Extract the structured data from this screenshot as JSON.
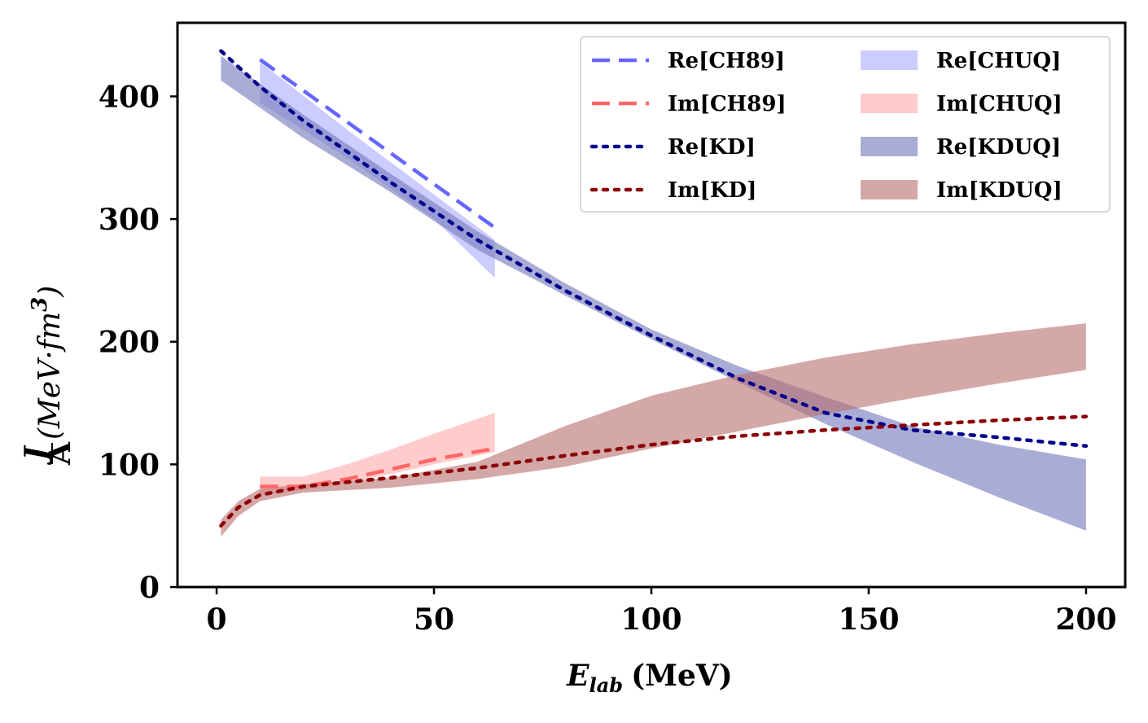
{
  "chart_data": {
    "type": "line",
    "title": "",
    "xlabel": {
      "symbol": "E",
      "subscript": "lab",
      "unit": "(MeV)"
    },
    "ylabel": {
      "fraction_num": "J",
      "fraction_den": "A",
      "text": "(MeV·fm",
      "superscript": "3",
      "close": ")"
    },
    "xlim": [
      -9,
      209
    ],
    "ylim": [
      0,
      460
    ],
    "xticks": [
      0,
      50,
      100,
      150,
      200
    ],
    "yticks": [
      0,
      100,
      200,
      300,
      400
    ],
    "legend_position": "top-right",
    "lines": [
      {
        "name": "Re[CH89]",
        "color": "#6666ff",
        "style": "dashed",
        "x": [
          10,
          64
        ],
        "y": [
          430,
          293
        ]
      },
      {
        "name": "Im[CH89]",
        "color": "#ff6666",
        "style": "dashed",
        "x": [
          10,
          20,
          30,
          40,
          50,
          64
        ],
        "y": [
          82,
          82,
          88,
          96,
          104,
          113
        ]
      },
      {
        "name": "Re[KD]",
        "color": "#00008b",
        "style": "dotted",
        "x": [
          1,
          10,
          20,
          40,
          60,
          80,
          100,
          120,
          140,
          160,
          180,
          200
        ],
        "y": [
          437,
          408,
          380,
          330,
          283,
          242,
          205,
          170,
          142,
          128,
          122,
          115
        ]
      },
      {
        "name": "Im[KD]",
        "color": "#8b0000",
        "style": "dotted",
        "x": [
          1,
          5,
          10,
          20,
          40,
          60,
          80,
          100,
          120,
          140,
          160,
          180,
          200
        ],
        "y": [
          50,
          65,
          75,
          82,
          89,
          97,
          107,
          116,
          123,
          128,
          132,
          136,
          139
        ]
      }
    ],
    "bands": [
      {
        "name": "Re[CHUQ]",
        "color": "#ccccff",
        "opacity": 1.0,
        "x": [
          10,
          30,
          50,
          64
        ],
        "lower": [
          395,
          350,
          300,
          252
        ],
        "upper": [
          428,
          373,
          320,
          283
        ]
      },
      {
        "name": "Im[CHUQ]",
        "color": "#ffcccc",
        "opacity": 1.0,
        "x": [
          10,
          20,
          30,
          40,
          50,
          64
        ],
        "lower": [
          75,
          79,
          85,
          92,
          100,
          110
        ],
        "upper": [
          90,
          90,
          100,
          112,
          125,
          142
        ]
      },
      {
        "name": "Re[KDUQ]",
        "color": "#7b7fbf",
        "opacity": 0.65,
        "x": [
          1,
          20,
          40,
          60,
          80,
          100,
          120,
          140,
          160,
          180,
          200
        ],
        "lower": [
          413,
          366,
          322,
          275,
          238,
          202,
          167,
          133,
          102,
          73,
          46
        ],
        "upper": [
          433,
          385,
          337,
          290,
          248,
          210,
          180,
          155,
          131,
          116,
          104
        ]
      },
      {
        "name": "Im[KDUQ]",
        "color": "#b96e6e",
        "opacity": 0.6,
        "x": [
          1,
          5,
          10,
          20,
          40,
          60,
          80,
          100,
          120,
          140,
          160,
          180,
          200
        ],
        "lower": [
          41,
          58,
          70,
          77,
          81,
          88,
          98,
          113,
          127,
          141,
          154,
          166,
          177
        ],
        "upper": [
          55,
          70,
          80,
          84,
          89,
          102,
          131,
          156,
          173,
          187,
          198,
          207,
          215
        ]
      }
    ],
    "legend": {
      "columns": [
        [
          "Re[CH89]",
          "Im[CH89]",
          "Re[KD]",
          "Im[KD]"
        ],
        [
          "Re[CHUQ]",
          "Im[CHUQ]",
          "Re[KDUQ]",
          "Im[KDUQ]"
        ]
      ]
    }
  }
}
